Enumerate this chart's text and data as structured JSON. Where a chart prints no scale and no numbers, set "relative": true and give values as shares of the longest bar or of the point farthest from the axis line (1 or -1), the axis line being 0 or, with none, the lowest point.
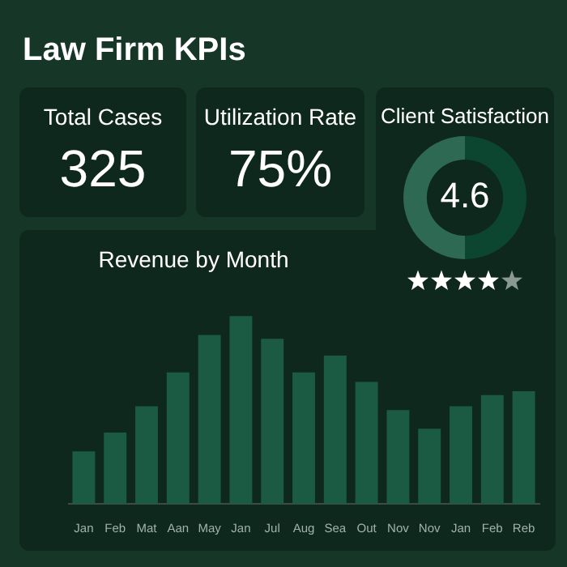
{
  "chart_data": [
    {
      "type": "other",
      "title": "Law Firm KPIs"
    },
    {
      "type": "other",
      "title": "Total Cases",
      "annotations": [
        "325"
      ]
    },
    {
      "type": "other",
      "title": "Utilization Rate",
      "annotations": [
        "75%"
      ]
    },
    {
      "type": "donut",
      "title": "Client Satisfaction",
      "categories": [
        null,
        null
      ],
      "values": [
        50,
        50
      ],
      "colors": [
        "#0c4630",
        "#2e6a53"
      ],
      "annotations": [
        "4.6"
      ]
    },
    {
      "type": "bar",
      "title": "Revenue by Month",
      "categories": [
        "Jan",
        "Feb",
        "Mat",
        "Aan",
        "May",
        "Jan",
        "Jul",
        "Aug",
        "Sea",
        "Out",
        "Nov",
        "Nov",
        "Jan",
        "Feb",
        "Reb"
      ],
      "values": [
        0.28,
        0.38,
        0.52,
        0.7,
        0.9,
        1,
        0.88,
        0.7,
        0.79,
        0.65,
        0.5,
        0.4,
        0.52,
        0.58,
        0.6
      ],
      "color": "#1b5a43",
      "relative": true
    }
  ]
}
